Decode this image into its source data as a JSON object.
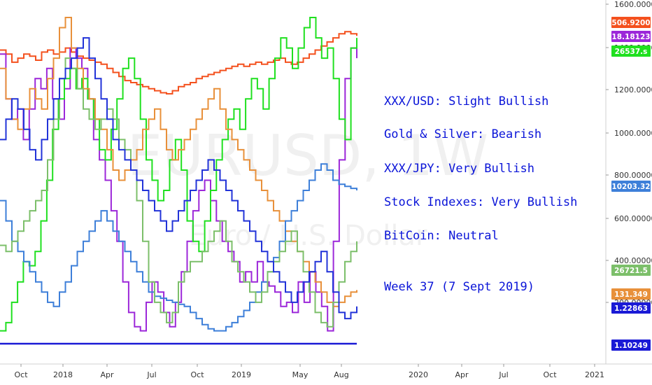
{
  "chart_data": {
    "type": "line",
    "watermark": {
      "symbol": "EURUSD, 1W",
      "name": "Euro / U.S. Dollar"
    },
    "x_ticks": [
      "Oct",
      "2018",
      "Apr",
      "Jul",
      "Oct",
      "2019",
      "May",
      "Aug",
      "2020",
      "Apr",
      "Jul",
      "Oct",
      "2021"
    ],
    "y_axis": {
      "ticks": [
        "1600.00000",
        "1400.00000",
        "1200.00000",
        "1000.00000",
        "800.00000",
        "600.00000",
        "400.00000",
        "200.00000"
      ]
    },
    "annotations": [
      "XXX/USD: Slight Bullish",
      "Gold & Silver:  Bearish",
      "XXX/JPY: Very Bullish",
      "Stock Indexes: Very Bullish",
      "BitCoin: Neutral",
      "Week 37 (7 Sept 2019)"
    ],
    "price_labels": [
      {
        "text": "1506.92000",
        "color": "#f4511e"
      },
      {
        "text": "18.18123",
        "color": "#9c27d9"
      },
      {
        "text": "26537.s",
        "color": "#1fe01f"
      },
      {
        "text": "10203.32",
        "color": "#3d7fd9"
      },
      {
        "text": "26721.5",
        "color": "#7cbf6a"
      },
      {
        "text": "131.349",
        "color": "#e8903a"
      },
      {
        "text": "1.22863",
        "color": "#1a1ad6"
      },
      {
        "text": "1.10249",
        "color": "#1a1ad6"
      }
    ],
    "series": [
      {
        "color": "#f4511e",
        "values": [
          1440,
          1420,
          1380,
          1400,
          1420,
          1410,
          1390,
          1430,
          1440,
          1420,
          1430,
          1450,
          1430,
          1410,
          1400,
          1390,
          1380,
          1370,
          1350,
          1330,
          1310,
          1290,
          1280,
          1270,
          1260,
          1250,
          1240,
          1230,
          1225,
          1240,
          1260,
          1270,
          1280,
          1300,
          1310,
          1320,
          1330,
          1340,
          1350,
          1360,
          1370,
          1360,
          1370,
          1380,
          1370,
          1380,
          1390,
          1400,
          1380,
          1370,
          1380,
          1400,
          1420,
          1440,
          1460,
          1480,
          1500,
          1520,
          1530,
          1520,
          1510
        ]
      },
      {
        "color": "#9c27d9",
        "values": [
          1420,
          1200,
          1100,
          1150,
          1000,
          1150,
          1300,
          1250,
          1350,
          1200,
          1100,
          1250,
          1450,
          1400,
          1350,
          1200,
          1000,
          900,
          800,
          650,
          500,
          300,
          150,
          80,
          60,
          200,
          300,
          250,
          150,
          80,
          200,
          350,
          500,
          650,
          750,
          800,
          700,
          600,
          500,
          450,
          400,
          300,
          350,
          300,
          400,
          300,
          280,
          250,
          180,
          200,
          150,
          300,
          200,
          350,
          250,
          180,
          60,
          500,
          900,
          1300,
          1450,
          1400
        ]
      },
      {
        "color": "#1fe01f",
        "values": [
          60,
          100,
          200,
          300,
          400,
          380,
          450,
          600,
          800,
          1050,
          1200,
          1300,
          1350,
          1250,
          1300,
          1200,
          1100,
          950,
          900,
          1050,
          1200,
          1350,
          1400,
          1300,
          1100,
          900,
          800,
          700,
          750,
          900,
          1000,
          850,
          600,
          500,
          450,
          600,
          750,
          900,
          1000,
          1100,
          1150,
          1050,
          1200,
          1300,
          1250,
          1150,
          1300,
          1400,
          1500,
          1450,
          1350,
          1450,
          1550,
          1600,
          1500,
          1400,
          1450,
          1300,
          1100,
          1000,
          1450,
          1500
        ]
      },
      {
        "color": "#e8903a",
        "values": [
          1350,
          1200,
          1100,
          1050,
          1150,
          1250,
          1200,
          1150,
          1300,
          1400,
          1550,
          1600,
          1450,
          1350,
          1250,
          1200,
          1100,
          1050,
          950,
          850,
          800,
          850,
          900,
          950,
          1050,
          1100,
          1150,
          1050,
          950,
          900,
          950,
          1000,
          1050,
          1100,
          1150,
          1200,
          1250,
          1150,
          1050,
          1000,
          950,
          900,
          850,
          800,
          750,
          700,
          650,
          600,
          550,
          500,
          450,
          400,
          350,
          300,
          250,
          200,
          180,
          200,
          230,
          250,
          260
        ]
      },
      {
        "color": "#3d7fd9",
        "values": [
          700,
          600,
          500,
          450,
          400,
          350,
          300,
          250,
          200,
          180,
          250,
          300,
          380,
          450,
          500,
          550,
          600,
          650,
          600,
          550,
          500,
          450,
          400,
          350,
          300,
          250,
          230,
          220,
          210,
          200,
          190,
          180,
          150,
          120,
          90,
          70,
          60,
          60,
          80,
          100,
          130,
          160,
          200,
          250,
          300,
          350,
          420,
          500,
          600,
          650,
          700,
          750,
          800,
          850,
          880,
          850,
          800,
          780,
          770,
          760,
          750
        ]
      },
      {
        "color": "#7cbf6a",
        "values": [
          480,
          450,
          500,
          550,
          600,
          650,
          700,
          750,
          900,
          1100,
          1300,
          1400,
          1350,
          1250,
          1150,
          1100,
          1050,
          1100,
          1150,
          1100,
          1000,
          950,
          850,
          700,
          500,
          300,
          200,
          150,
          100,
          150,
          300,
          350,
          400,
          400,
          450,
          500,
          550,
          600,
          500,
          400,
          350,
          300,
          250,
          200,
          250,
          350,
          400,
          450,
          500,
          550,
          450,
          350,
          250,
          150,
          100,
          80,
          200,
          300,
          400,
          450,
          500
        ]
      },
      {
        "color": "#2233d8",
        "values": [
          1000,
          1100,
          1200,
          1150,
          1050,
          950,
          900,
          1000,
          1100,
          1200,
          1300,
          1350,
          1400,
          1450,
          1500,
          1400,
          1300,
          1200,
          1100,
          1000,
          950,
          900,
          850,
          800,
          750,
          700,
          650,
          600,
          550,
          600,
          650,
          700,
          750,
          800,
          850,
          900,
          850,
          800,
          750,
          700,
          650,
          600,
          550,
          500,
          450,
          400,
          350,
          300,
          250,
          200,
          250,
          300,
          350,
          400,
          450,
          350,
          250,
          150,
          120,
          150,
          180
        ]
      }
    ]
  }
}
